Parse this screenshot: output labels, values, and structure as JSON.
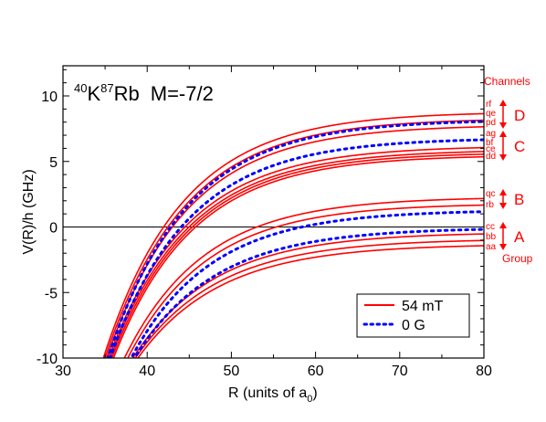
{
  "chart_data": {
    "type": "line",
    "title_parts": {
      "k_mass": "40",
      "k_sym": "K",
      "rb_mass": "87",
      "rb_sym": "Rb",
      "m_text": "M=-7/2"
    },
    "xlabel_main": "R (units of a",
    "xlabel_sub": "0",
    "xlabel_close": ")",
    "ylabel": "V(R)/h (GHz)",
    "xlim": [
      30,
      80
    ],
    "ylim": [
      -10,
      12.3
    ],
    "xticks": [
      30,
      40,
      50,
      60,
      70,
      80
    ],
    "yticks": [
      -10,
      -5,
      0,
      5,
      10
    ],
    "zero_line": true,
    "legend": {
      "placement": "lower-right",
      "entries": [
        {
          "label": "54 mT",
          "style": "solid",
          "color": "#ff0000"
        },
        {
          "label": "0 G",
          "style": "dotted",
          "color": "#0000ff"
        }
      ]
    },
    "channels_header": "Channels",
    "group_label": "Group",
    "channel_labels": [
      "rf",
      "qe",
      "pd",
      "ag",
      "bf",
      "ce",
      "dd",
      "qc",
      "rb",
      "cc",
      "bb",
      "aa"
    ],
    "groups": [
      "D",
      "C",
      "B",
      "A"
    ],
    "series_54mT": [
      {
        "asymptote": 8.8,
        "x_cross": 34.8,
        "r_to_80": 0.155,
        "channel": "rf"
      },
      {
        "asymptote": 8.3,
        "x_cross": 35.0,
        "r_to_80": 0.155,
        "channel": "qe"
      },
      {
        "asymptote": 7.8,
        "x_cross": 35.2,
        "r_to_80": 0.155,
        "channel": "pd"
      },
      {
        "asymptote": 6.2,
        "x_cross": 35.4,
        "r_to_80": 0.145,
        "channel": "ag"
      },
      {
        "asymptote": 5.9,
        "x_cross": 35.6,
        "r_to_80": 0.145,
        "channel": "bf"
      },
      {
        "asymptote": 5.7,
        "x_cross": 35.8,
        "r_to_80": 0.145,
        "channel": "ce"
      },
      {
        "asymptote": 5.5,
        "x_cross": 36.0,
        "r_to_80": 0.145,
        "channel": "dd"
      },
      {
        "asymptote": 2.3,
        "x_cross": 37.3,
        "r_to_80": 0.13,
        "channel": "qc"
      },
      {
        "asymptote": 1.8,
        "x_cross": 37.7,
        "r_to_80": 0.13,
        "channel": "rb"
      },
      {
        "asymptote": -0.4,
        "x_cross": 38.3,
        "r_to_80": 0.13,
        "channel": "cc"
      },
      {
        "asymptote": -0.9,
        "x_cross": 38.6,
        "r_to_80": 0.13,
        "channel": "bb"
      },
      {
        "asymptote": -1.3,
        "x_cross": 38.9,
        "r_to_80": 0.13,
        "channel": "aa"
      }
    ],
    "series_0G": [
      {
        "asymptote": 8.2,
        "x_cross": 35.3,
        "r_to_80": 0.155
      },
      {
        "asymptote": 6.8,
        "x_cross": 35.6,
        "r_to_80": 0.145
      },
      {
        "asymptote": 1.3,
        "x_cross": 38.1,
        "r_to_80": 0.13
      },
      {
        "asymptote": -0.05,
        "x_cross": 38.5,
        "r_to_80": 0.13
      }
    ]
  }
}
